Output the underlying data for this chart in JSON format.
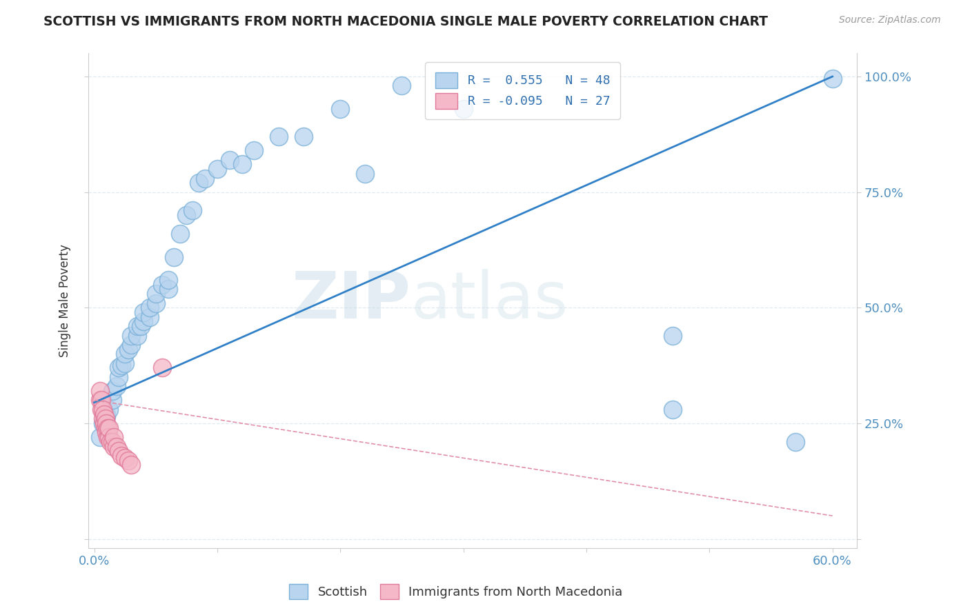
{
  "title": "SCOTTISH VS IMMIGRANTS FROM NORTH MACEDONIA SINGLE MALE POVERTY CORRELATION CHART",
  "source": "Source: ZipAtlas.com",
  "ylabel": "Single Male Poverty",
  "xlim": [
    -0.005,
    0.62
  ],
  "ylim": [
    -0.02,
    1.05
  ],
  "xticks": [
    0.0,
    0.1,
    0.2,
    0.3,
    0.4,
    0.5,
    0.6
  ],
  "yticks": [
    0.0,
    0.25,
    0.5,
    0.75,
    1.0
  ],
  "R_scottish": 0.555,
  "N_scottish": 48,
  "R_macedonia": -0.095,
  "N_macedonia": 27,
  "scottish_color": "#b8d4ee",
  "scotland_edge": "#7ab0d8",
  "macedonia_color": "#f4b8c8",
  "macedonia_edge": "#e07898",
  "trendline_scottish_color": "#3080c8",
  "trendline_macedonia_color": "#e090a8",
  "watermark_zip": "ZIP",
  "watermark_atlas": "atlas",
  "background_color": "#ffffff",
  "grid_color": "#e0e8f0",
  "scottish_x": [
    0.005,
    0.007,
    0.01,
    0.01,
    0.012,
    0.015,
    0.015,
    0.018,
    0.02,
    0.02,
    0.022,
    0.025,
    0.025,
    0.028,
    0.03,
    0.03,
    0.035,
    0.035,
    0.038,
    0.04,
    0.04,
    0.045,
    0.045,
    0.05,
    0.05,
    0.055,
    0.06,
    0.06,
    0.065,
    0.07,
    0.075,
    0.08,
    0.085,
    0.09,
    0.1,
    0.11,
    0.12,
    0.13,
    0.15,
    0.17,
    0.2,
    0.22,
    0.25,
    0.3,
    0.47,
    0.47,
    0.57,
    0.6
  ],
  "scottish_y": [
    0.22,
    0.25,
    0.265,
    0.27,
    0.28,
    0.3,
    0.32,
    0.33,
    0.35,
    0.37,
    0.375,
    0.38,
    0.4,
    0.41,
    0.42,
    0.44,
    0.44,
    0.46,
    0.46,
    0.47,
    0.49,
    0.48,
    0.5,
    0.51,
    0.53,
    0.55,
    0.54,
    0.56,
    0.61,
    0.66,
    0.7,
    0.71,
    0.77,
    0.78,
    0.8,
    0.82,
    0.81,
    0.84,
    0.87,
    0.87,
    0.93,
    0.79,
    0.98,
    0.93,
    0.44,
    0.28,
    0.21,
    0.995
  ],
  "macedonia_x": [
    0.005,
    0.005,
    0.006,
    0.006,
    0.007,
    0.007,
    0.008,
    0.008,
    0.009,
    0.009,
    0.01,
    0.01,
    0.011,
    0.011,
    0.012,
    0.012,
    0.013,
    0.015,
    0.016,
    0.016,
    0.018,
    0.02,
    0.022,
    0.025,
    0.028,
    0.03,
    0.055
  ],
  "macedonia_y": [
    0.3,
    0.32,
    0.28,
    0.3,
    0.26,
    0.28,
    0.25,
    0.27,
    0.24,
    0.26,
    0.23,
    0.25,
    0.22,
    0.24,
    0.22,
    0.24,
    0.21,
    0.21,
    0.2,
    0.22,
    0.2,
    0.19,
    0.18,
    0.175,
    0.17,
    0.16,
    0.37
  ]
}
